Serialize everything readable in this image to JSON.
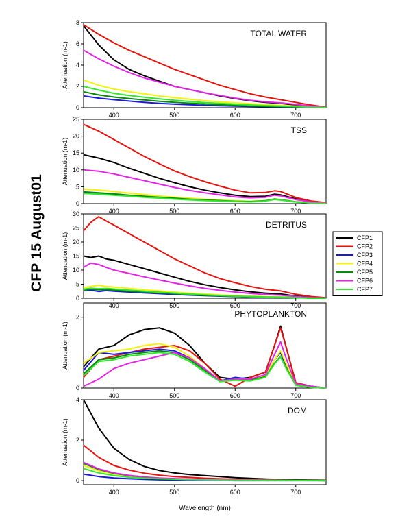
{
  "figure_title": "CFP 15 August01",
  "x_axis_label": "Wavelength (nm)",
  "legend": [
    "CFP1",
    "CFP2",
    "CFP3",
    "CFP4",
    "CFP5",
    "CFP6",
    "CFP7"
  ],
  "colors": {
    "CFP1": "#000000",
    "CFP2": "#e8120c",
    "CFP3": "#1a1ad6",
    "CFP4": "#f2f20a",
    "CFP5": "#0a8a0a",
    "CFP6": "#e622e6",
    "CFP7": "#30e830"
  },
  "chart_data": [
    {
      "type": "line",
      "title": "TOTAL WATER",
      "ylabel": "Attenuation (m-1)",
      "xlim": [
        350,
        750
      ],
      "ylim": [
        0,
        8
      ],
      "xticks": [
        400,
        500,
        600,
        700
      ],
      "yticks": [
        0,
        2,
        4,
        6,
        8
      ],
      "x": [
        350,
        375,
        400,
        425,
        450,
        475,
        500,
        525,
        550,
        575,
        600,
        625,
        650,
        675,
        700,
        725,
        750
      ],
      "series": [
        {
          "name": "CFP1",
          "values": [
            7.7,
            5.9,
            4.5,
            3.6,
            3.0,
            2.5,
            2.0,
            1.7,
            1.4,
            1.1,
            0.85,
            0.65,
            0.5,
            0.4,
            0.25,
            0.12,
            0.02
          ]
        },
        {
          "name": "CFP2",
          "values": [
            7.8,
            6.9,
            6.1,
            5.4,
            4.8,
            4.2,
            3.6,
            3.1,
            2.6,
            2.1,
            1.7,
            1.3,
            1.0,
            0.75,
            0.5,
            0.25,
            0.05
          ]
        },
        {
          "name": "CFP3",
          "values": [
            1.1,
            0.9,
            0.75,
            0.62,
            0.5,
            0.4,
            0.33,
            0.27,
            0.22,
            0.18,
            0.14,
            0.11,
            0.09,
            0.07,
            0.05,
            0.03,
            0.01
          ]
        },
        {
          "name": "CFP4",
          "values": [
            2.6,
            2.1,
            1.75,
            1.5,
            1.3,
            1.1,
            0.95,
            0.8,
            0.65,
            0.55,
            0.45,
            0.36,
            0.28,
            0.22,
            0.15,
            0.08,
            0.02
          ]
        },
        {
          "name": "CFP5",
          "values": [
            1.5,
            1.2,
            1.0,
            0.85,
            0.72,
            0.6,
            0.5,
            0.42,
            0.35,
            0.28,
            0.22,
            0.17,
            0.13,
            0.1,
            0.07,
            0.04,
            0.01
          ]
        },
        {
          "name": "CFP6",
          "values": [
            5.4,
            4.6,
            3.9,
            3.3,
            2.8,
            2.4,
            2.0,
            1.7,
            1.4,
            1.15,
            0.9,
            0.7,
            0.55,
            0.45,
            0.3,
            0.15,
            0.03
          ]
        },
        {
          "name": "CFP7",
          "values": [
            2.0,
            1.65,
            1.35,
            1.15,
            0.98,
            0.83,
            0.7,
            0.58,
            0.48,
            0.4,
            0.32,
            0.25,
            0.19,
            0.15,
            0.1,
            0.05,
            0.01
          ]
        }
      ]
    },
    {
      "type": "line",
      "title": "TSS",
      "ylabel": "Attenuation (m-1)",
      "xlim": [
        350,
        750
      ],
      "ylim": [
        0,
        25
      ],
      "xticks": [
        400,
        500,
        600,
        700
      ],
      "yticks": [
        0,
        5,
        10,
        15,
        20,
        25
      ],
      "x": [
        350,
        375,
        400,
        425,
        450,
        475,
        500,
        525,
        550,
        575,
        600,
        625,
        650,
        665,
        675,
        700,
        725,
        750
      ],
      "series": [
        {
          "name": "CFP1",
          "values": [
            14.5,
            13.5,
            12.2,
            10.5,
            9.0,
            7.5,
            6.2,
            5.0,
            4.0,
            3.2,
            2.5,
            2.1,
            2.2,
            2.8,
            2.6,
            1.4,
            0.6,
            0.2
          ]
        },
        {
          "name": "CFP2",
          "values": [
            23.5,
            21.5,
            19.0,
            16.5,
            14.0,
            11.8,
            9.7,
            8.0,
            6.5,
            5.2,
            4.0,
            3.2,
            3.3,
            3.8,
            3.6,
            1.8,
            0.8,
            0.3
          ]
        },
        {
          "name": "CFP3",
          "values": [
            3.2,
            3.0,
            2.7,
            2.3,
            2.0,
            1.7,
            1.4,
            1.2,
            1.0,
            0.8,
            0.65,
            0.55,
            0.8,
            1.3,
            1.1,
            0.5,
            0.2,
            0.05
          ]
        },
        {
          "name": "CFP4",
          "values": [
            4.3,
            4.0,
            3.6,
            3.1,
            2.7,
            2.3,
            1.9,
            1.6,
            1.3,
            1.05,
            0.85,
            0.7,
            0.9,
            1.4,
            1.2,
            0.55,
            0.22,
            0.06
          ]
        },
        {
          "name": "CFP5",
          "values": [
            3.5,
            3.2,
            2.9,
            2.5,
            2.2,
            1.9,
            1.6,
            1.3,
            1.1,
            0.9,
            0.7,
            0.6,
            0.85,
            1.35,
            1.15,
            0.52,
            0.2,
            0.05
          ]
        },
        {
          "name": "CFP6",
          "values": [
            10.0,
            9.6,
            8.8,
            7.8,
            6.8,
            5.8,
            4.8,
            3.9,
            3.2,
            2.6,
            2.0,
            1.7,
            1.9,
            2.5,
            2.3,
            1.2,
            0.5,
            0.15
          ]
        },
        {
          "name": "CFP7",
          "values": [
            3.0,
            2.8,
            2.5,
            2.2,
            1.9,
            1.6,
            1.35,
            1.1,
            0.9,
            0.75,
            0.6,
            0.5,
            0.75,
            1.25,
            1.05,
            0.48,
            0.18,
            0.04
          ]
        }
      ]
    },
    {
      "type": "line",
      "title": "DETRITUS",
      "ylabel": "Attenuation (m-1)",
      "xlim": [
        350,
        750
      ],
      "ylim": [
        0,
        30
      ],
      "xticks": [
        400,
        500,
        600,
        700
      ],
      "yticks": [
        0,
        5,
        10,
        15,
        20,
        25,
        30
      ],
      "x": [
        350,
        362,
        375,
        387,
        400,
        425,
        450,
        475,
        500,
        525,
        550,
        575,
        600,
        625,
        650,
        675,
        700,
        725,
        750
      ],
      "series": [
        {
          "name": "CFP1",
          "values": [
            15.0,
            14.5,
            15.0,
            14.0,
            13.5,
            12.0,
            10.5,
            9.0,
            7.5,
            6.0,
            4.8,
            3.8,
            3.0,
            2.3,
            1.8,
            1.5,
            0.8,
            0.3,
            0.1
          ]
        },
        {
          "name": "CFP2",
          "values": [
            24.0,
            27.0,
            29.0,
            27.5,
            26.0,
            23.0,
            20.0,
            17.0,
            14.0,
            11.5,
            9.0,
            7.0,
            5.5,
            4.2,
            3.2,
            2.6,
            1.4,
            0.6,
            0.2
          ]
        },
        {
          "name": "CFP3",
          "values": [
            2.6,
            2.9,
            2.4,
            2.7,
            2.5,
            2.2,
            1.9,
            1.6,
            1.35,
            1.1,
            0.9,
            0.72,
            0.58,
            0.45,
            0.35,
            0.3,
            0.15,
            0.06,
            0.02
          ]
        },
        {
          "name": "CFP4",
          "values": [
            3.8,
            4.2,
            4.6,
            4.2,
            4.0,
            3.5,
            3.0,
            2.6,
            2.2,
            1.8,
            1.5,
            1.2,
            0.95,
            0.75,
            0.58,
            0.48,
            0.25,
            0.1,
            0.03
          ]
        },
        {
          "name": "CFP5",
          "values": [
            2.8,
            3.3,
            3.0,
            3.1,
            2.9,
            2.5,
            2.2,
            1.9,
            1.6,
            1.3,
            1.05,
            0.85,
            0.68,
            0.52,
            0.4,
            0.34,
            0.17,
            0.07,
            0.02
          ]
        },
        {
          "name": "CFP6",
          "values": [
            11.0,
            12.5,
            12.0,
            11.0,
            10.0,
            8.8,
            7.6,
            6.5,
            5.4,
            4.4,
            3.5,
            2.8,
            2.2,
            1.7,
            1.3,
            1.1,
            0.6,
            0.22,
            0.07
          ]
        },
        {
          "name": "CFP7",
          "values": [
            3.2,
            3.6,
            3.4,
            3.5,
            3.3,
            2.9,
            2.5,
            2.15,
            1.8,
            1.5,
            1.2,
            0.95,
            0.75,
            0.58,
            0.45,
            0.38,
            0.19,
            0.08,
            0.02
          ]
        }
      ]
    },
    {
      "type": "line",
      "title": "PHYTOPLANKTON",
      "ylabel": "Attenuation (m-1)",
      "xlim": [
        350,
        750
      ],
      "ylim": [
        0,
        2.4
      ],
      "xticks": [
        400,
        500,
        600,
        700
      ],
      "yticks": [
        0,
        2
      ],
      "x": [
        350,
        375,
        400,
        425,
        450,
        475,
        500,
        525,
        550,
        575,
        600,
        625,
        650,
        665,
        675,
        685,
        700,
        725,
        750
      ],
      "series": [
        {
          "name": "CFP1",
          "values": [
            0.6,
            1.1,
            1.2,
            1.5,
            1.65,
            1.7,
            1.55,
            1.2,
            0.7,
            0.3,
            0.25,
            0.3,
            0.45,
            1.2,
            1.75,
            1.1,
            0.15,
            0.05,
            0.0
          ]
        },
        {
          "name": "CFP2",
          "values": [
            0.3,
            0.8,
            0.9,
            1.0,
            1.1,
            1.15,
            1.2,
            1.05,
            0.7,
            0.25,
            0.05,
            0.3,
            0.45,
            1.2,
            1.7,
            1.1,
            0.15,
            0.05,
            0.0
          ]
        },
        {
          "name": "CFP3",
          "values": [
            0.5,
            1.0,
            0.95,
            1.0,
            1.05,
            1.1,
            1.05,
            0.85,
            0.55,
            0.2,
            0.3,
            0.25,
            0.35,
            0.8,
            1.0,
            0.6,
            0.08,
            0.02,
            0.0
          ]
        },
        {
          "name": "CFP4",
          "values": [
            0.7,
            1.0,
            1.05,
            1.1,
            1.2,
            1.25,
            1.15,
            0.9,
            0.55,
            0.2,
            0.25,
            0.25,
            0.35,
            0.8,
            1.05,
            0.65,
            0.1,
            0.02,
            0.0
          ]
        },
        {
          "name": "CFP5",
          "values": [
            0.4,
            0.8,
            0.85,
            0.95,
            1.0,
            1.05,
            1.0,
            0.8,
            0.5,
            0.2,
            0.25,
            0.22,
            0.32,
            0.7,
            0.9,
            0.55,
            0.08,
            0.02,
            0.0
          ]
        },
        {
          "name": "CFP6",
          "values": [
            0.05,
            0.25,
            0.55,
            0.7,
            0.8,
            0.9,
            1.0,
            0.85,
            0.55,
            0.2,
            0.25,
            0.25,
            0.38,
            0.95,
            1.3,
            0.8,
            0.12,
            0.05,
            0.0
          ]
        },
        {
          "name": "CFP7",
          "values": [
            0.35,
            0.75,
            0.8,
            0.9,
            0.95,
            1.0,
            0.95,
            0.75,
            0.45,
            0.18,
            0.22,
            0.2,
            0.3,
            0.68,
            0.88,
            0.52,
            0.08,
            0.02,
            0.0
          ]
        }
      ]
    },
    {
      "type": "line",
      "title": "DOM",
      "ylabel": "Attenuation (m-1)",
      "xlim": [
        350,
        750
      ],
      "ylim": [
        -0.2,
        4
      ],
      "xticks": [
        400,
        500,
        600,
        700
      ],
      "yticks": [
        0,
        2,
        4
      ],
      "x": [
        350,
        375,
        400,
        425,
        450,
        475,
        500,
        525,
        550,
        575,
        600,
        650,
        700,
        750
      ],
      "series": [
        {
          "name": "CFP1",
          "values": [
            4.0,
            2.6,
            1.6,
            1.05,
            0.7,
            0.5,
            0.38,
            0.3,
            0.25,
            0.2,
            0.15,
            0.08,
            0.04,
            0.02
          ]
        },
        {
          "name": "CFP2",
          "values": [
            1.75,
            1.15,
            0.75,
            0.52,
            0.37,
            0.27,
            0.2,
            0.16,
            0.12,
            0.09,
            0.07,
            0.04,
            0.02,
            0.01
          ]
        },
        {
          "name": "CFP3",
          "values": [
            0.32,
            0.2,
            0.13,
            0.09,
            0.06,
            0.04,
            0.03,
            0.02,
            0.01,
            0.01,
            0.0,
            0.0,
            0.0,
            0.0
          ]
        },
        {
          "name": "CFP4",
          "values": [
            0.75,
            0.48,
            0.32,
            0.22,
            0.15,
            0.11,
            0.08,
            0.06,
            0.05,
            0.04,
            0.03,
            0.02,
            0.01,
            0.0
          ]
        },
        {
          "name": "CFP5",
          "values": [
            0.85,
            0.55,
            0.36,
            0.25,
            0.17,
            0.12,
            0.09,
            0.07,
            0.05,
            0.04,
            0.03,
            0.02,
            0.01,
            0.0
          ]
        },
        {
          "name": "CFP6",
          "values": [
            0.9,
            0.58,
            0.38,
            0.26,
            0.18,
            0.13,
            0.1,
            0.08,
            0.06,
            0.05,
            0.04,
            0.02,
            0.01,
            0.0
          ]
        },
        {
          "name": "CFP7",
          "values": [
            0.6,
            0.38,
            0.25,
            0.17,
            0.12,
            0.09,
            0.07,
            0.05,
            0.04,
            0.03,
            0.02,
            0.01,
            0.01,
            0.0
          ]
        }
      ]
    }
  ]
}
